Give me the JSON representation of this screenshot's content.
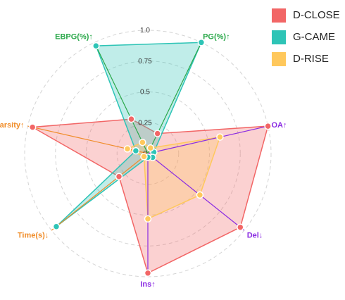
{
  "chart_data": {
    "type": "radar",
    "title": "",
    "axes": [
      {
        "label": "PG(%)↑",
        "color": "#2aa84a"
      },
      {
        "label": "OA↑",
        "color": "#8a2be2"
      },
      {
        "label": "Del↓",
        "color": "#8a2be2"
      },
      {
        "label": "Ins↑",
        "color": "#8a2be2"
      },
      {
        "label": "Time(s)↓",
        "color": "#f08c28"
      },
      {
        "label": "Sparsity↑",
        "color": "#f08c28"
      },
      {
        "label": "EBPG(%)↑",
        "color": "#2aa84a"
      }
    ],
    "ticks": [
      "0",
      "0.25",
      "0.5",
      "0.75",
      "1.0"
    ],
    "tick_values": [
      0,
      0.25,
      0.5,
      0.75,
      1.0
    ],
    "range": [
      0,
      1
    ],
    "grid": true,
    "legend_position": "top-right",
    "series": [
      {
        "name": "D-CLOSE",
        "color": "#f26666",
        "values": [
          0.18,
          1.0,
          0.96,
          0.97,
          0.3,
          0.96,
          0.31
        ]
      },
      {
        "name": "G-CAME",
        "color": "#2ec4b6",
        "values": [
          1.0,
          0.05,
          0.05,
          0.03,
          0.95,
          0.1,
          0.97
        ]
      },
      {
        "name": "D-RISE",
        "color": "#ffc85c",
        "values": [
          0.05,
          0.6,
          0.54,
          0.53,
          0.04,
          0.17,
          0.1
        ]
      }
    ]
  }
}
